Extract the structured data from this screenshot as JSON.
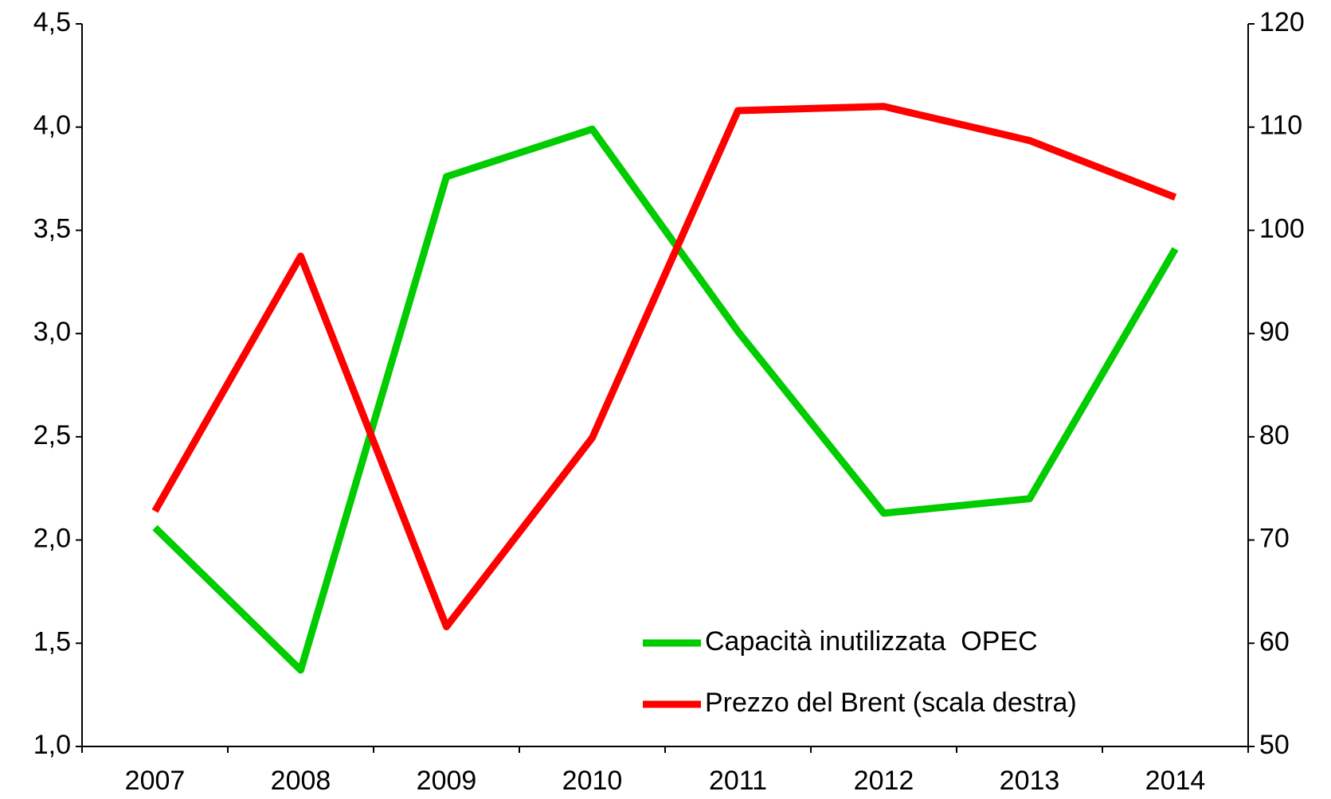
{
  "chart_data": {
    "type": "line",
    "categories": [
      "2007",
      "2008",
      "2009",
      "2010",
      "2011",
      "2012",
      "2013",
      "2014"
    ],
    "series": [
      {
        "name": "Capacità inutilizzata  OPEC",
        "color": "#00cc00",
        "values": [
          2.06,
          1.37,
          3.76,
          3.99,
          3.01,
          2.13,
          2.2,
          3.41
        ]
      },
      {
        "name": "Prezzo del Brent (scala destra)",
        "color": "#ff0000",
        "axis": "y2",
        "values": [
          72.8,
          97.5,
          61.6,
          79.9,
          111.6,
          112.0,
          108.7,
          103.2
        ]
      }
    ],
    "ylim": [
      1.0,
      4.5
    ],
    "yticks": [
      {
        "value": 1.0,
        "label": "1,0"
      },
      {
        "value": 1.5,
        "label": "1,5"
      },
      {
        "value": 2.0,
        "label": "2,0"
      },
      {
        "value": 2.5,
        "label": "2,5"
      },
      {
        "value": 3.0,
        "label": "3,0"
      },
      {
        "value": 3.5,
        "label": "3,5"
      },
      {
        "value": 4.0,
        "label": "4,0"
      },
      {
        "value": 4.5,
        "label": "4,5"
      }
    ],
    "y2lim": [
      50,
      120
    ],
    "y2ticks": [
      50,
      60,
      70,
      80,
      90,
      100,
      110,
      120
    ],
    "grid": false,
    "legend": "lower-right"
  }
}
